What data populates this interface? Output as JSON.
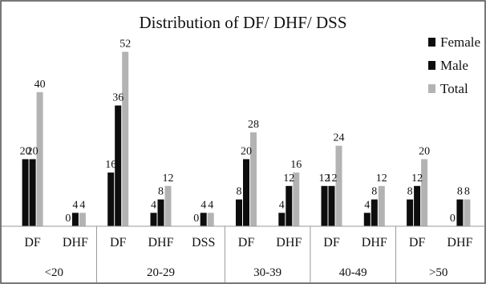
{
  "chart_data": {
    "type": "bar",
    "title": "Distribution  of DF/ DHF/ DSS",
    "groups": [
      {
        "label": "<20",
        "categories": [
          "DF",
          "DHF"
        ]
      },
      {
        "label": "20-29",
        "categories": [
          "DF",
          "DHF",
          "DSS"
        ]
      },
      {
        "label": "30-39",
        "categories": [
          "DF",
          "DHF"
        ]
      },
      {
        "label": "40-49",
        "categories": [
          "DF",
          "DHF"
        ]
      },
      {
        "label": ">50",
        "categories": [
          "DF",
          "DHF"
        ]
      }
    ],
    "categories": [
      "DF",
      "DHF",
      "DF",
      "DHF",
      "DSS",
      "DF",
      "DHF",
      "DF",
      "DHF",
      "DF",
      "DHF"
    ],
    "series": [
      {
        "name": "Female",
        "color": "#0d0d0d",
        "values": [
          20,
          0,
          16,
          4,
          0,
          8,
          4,
          12,
          4,
          8,
          0
        ]
      },
      {
        "name": "Male",
        "color": "#0d0d0d",
        "values": [
          20,
          4,
          36,
          8,
          4,
          20,
          12,
          12,
          8,
          12,
          8
        ]
      },
      {
        "name": "Total",
        "color": "#b3b3b3",
        "values": [
          40,
          4,
          52,
          12,
          4,
          28,
          16,
          24,
          12,
          20,
          8
        ]
      }
    ],
    "ylim": [
      0,
      55
    ],
    "grid": false,
    "legend_position": "top-right"
  }
}
